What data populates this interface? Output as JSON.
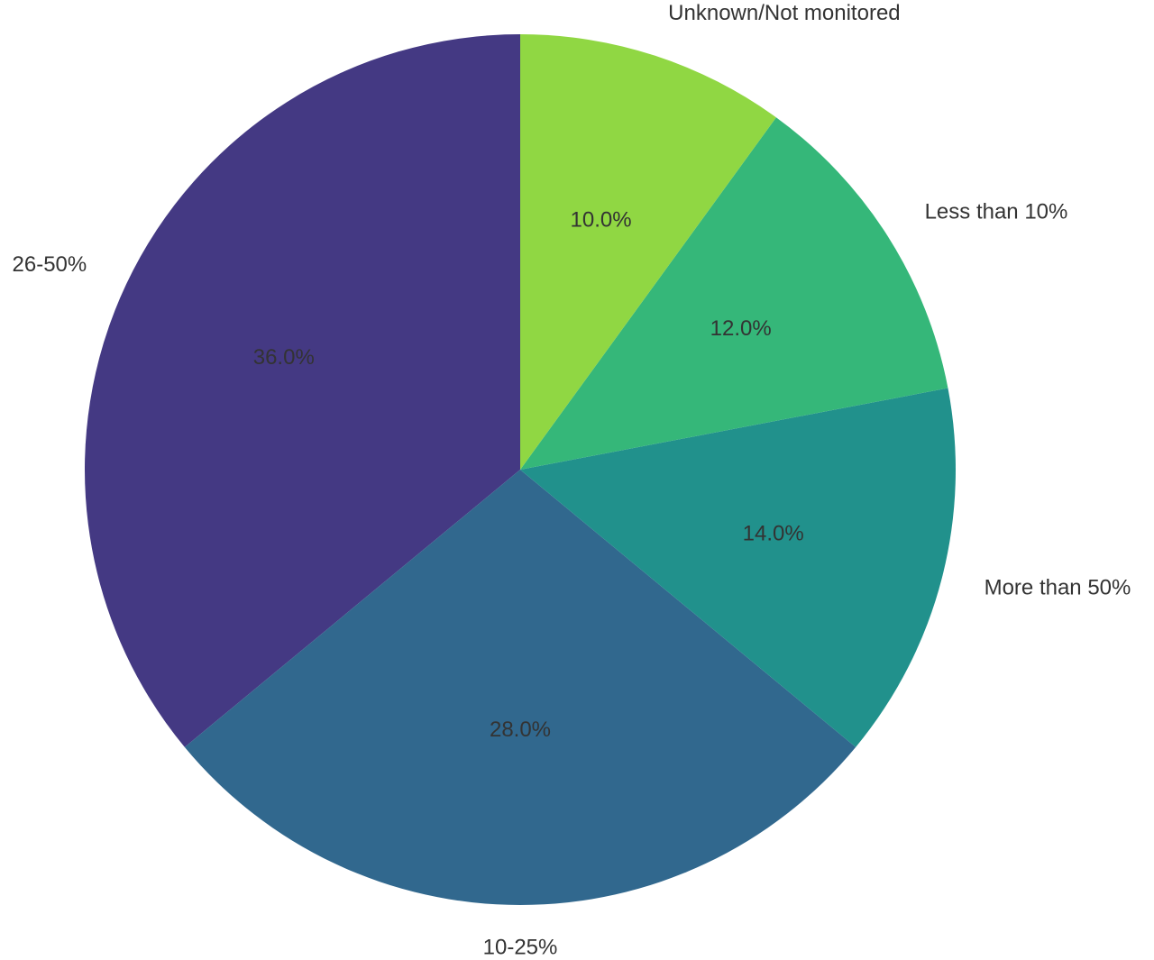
{
  "chart_data": {
    "type": "pie",
    "categories": [
      "26-50%",
      "10-25%",
      "More than 50%",
      "Less than 10%",
      "Unknown/Not monitored"
    ],
    "values": [
      36,
      28,
      14,
      12,
      10
    ],
    "value_labels": [
      "36.0%",
      "28.0%",
      "14.0%",
      "12.0%",
      "10.0%"
    ],
    "colors": [
      "#443983",
      "#31688e",
      "#21918c",
      "#35b779",
      "#90d743"
    ]
  }
}
